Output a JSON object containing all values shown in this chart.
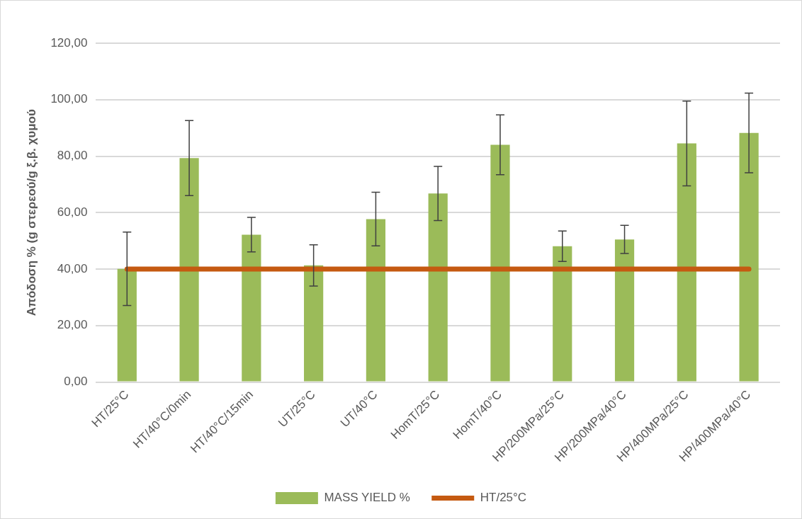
{
  "chart_data": {
    "type": "bar",
    "ylabel": "Απόδοση % (g στερεού/g ξ.β. χυμού",
    "categories": [
      "HT/25°C",
      "HT/40°C/0min",
      "HT/40°C/15min",
      "UT/25°C",
      "UT/40°C",
      "HomT/25°C",
      "HomT/40°C",
      "HP/200MPa/25°C",
      "HP/200MPa/40°C",
      "HP/400MPa/25°C",
      "HP/400MPa/40°C"
    ],
    "series": [
      {
        "name": "MASS YIELD %",
        "color": "#9bbb59",
        "values": [
          40.1,
          79.3,
          52.2,
          41.3,
          57.7,
          66.8,
          84.0,
          48.1,
          50.5,
          84.5,
          88.2
        ],
        "errors": [
          13.0,
          13.3,
          6.1,
          7.3,
          9.5,
          9.6,
          10.6,
          5.4,
          5.0,
          15.0,
          14.1
        ]
      },
      {
        "name": "HT/25°C",
        "type": "line",
        "color": "#c55a11",
        "values": [
          40,
          40,
          40,
          40,
          40,
          40,
          40,
          40,
          40,
          40,
          40
        ]
      }
    ],
    "ylim": [
      0,
      120
    ],
    "yticks": [
      {
        "value": 0,
        "label": "0,00"
      },
      {
        "value": 20,
        "label": "20,00"
      },
      {
        "value": 40,
        "label": "40,00"
      },
      {
        "value": 60,
        "label": "60,00"
      },
      {
        "value": 80,
        "label": "80,00"
      },
      {
        "value": 100,
        "label": "100,00"
      },
      {
        "value": 120,
        "label": "120,00"
      }
    ],
    "grid": "y",
    "legend": "bottom"
  }
}
